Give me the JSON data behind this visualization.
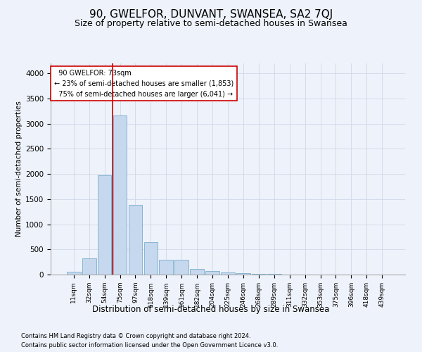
{
  "title": "90, GWELFOR, DUNVANT, SWANSEA, SA2 7QJ",
  "subtitle": "Size of property relative to semi-detached houses in Swansea",
  "xlabel": "Distribution of semi-detached houses by size in Swansea",
  "ylabel": "Number of semi-detached properties",
  "footnote1": "Contains HM Land Registry data © Crown copyright and database right 2024.",
  "footnote2": "Contains public sector information licensed under the Open Government Licence v3.0.",
  "categories": [
    "11sqm",
    "32sqm",
    "54sqm",
    "75sqm",
    "97sqm",
    "118sqm",
    "139sqm",
    "161sqm",
    "182sqm",
    "204sqm",
    "225sqm",
    "246sqm",
    "268sqm",
    "289sqm",
    "311sqm",
    "332sqm",
    "353sqm",
    "375sqm",
    "396sqm",
    "418sqm",
    "439sqm"
  ],
  "values": [
    50,
    320,
    1975,
    3170,
    1390,
    640,
    300,
    290,
    110,
    65,
    45,
    25,
    10,
    10,
    5,
    5,
    3,
    2,
    1,
    1,
    0
  ],
  "bar_color": "#c5d8ed",
  "bar_edge_color": "#7aadcf",
  "property_label": "90 GWELFOR: 73sqm",
  "pct_smaller": 23,
  "n_smaller": "1,853",
  "pct_larger": 75,
  "n_larger": "6,041",
  "vline_x_index": 3,
  "annotation_box_color": "#ffffff",
  "annotation_box_edge": "#cc0000",
  "vline_color": "#cc0000",
  "ylim": [
    0,
    4200
  ],
  "yticks": [
    0,
    500,
    1000,
    1500,
    2000,
    2500,
    3000,
    3500,
    4000
  ],
  "grid_color": "#d0d8e8",
  "bg_color": "#eef2fa",
  "title_fontsize": 11,
  "subtitle_fontsize": 9
}
